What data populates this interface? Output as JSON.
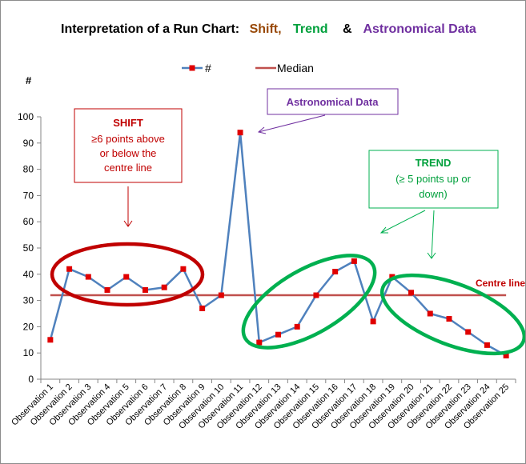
{
  "title": {
    "prefix": "Interpretation of a Run Chart:",
    "shift": "Shift,",
    "trend": "Trend",
    "amp": "&",
    "astro": "Astronomical Data",
    "colors": {
      "prefix": "#000000",
      "shift": "#984807",
      "trend": "#00a03c",
      "astro": "#7030a0"
    }
  },
  "legend": {
    "series": "#",
    "median": "Median"
  },
  "chart_data": {
    "type": "line",
    "ylabel": "#",
    "ylim": [
      0,
      100
    ],
    "yticks": [
      0,
      10,
      20,
      30,
      40,
      50,
      60,
      70,
      80,
      90,
      100
    ],
    "categories": [
      "Observation 1",
      "Observation 2",
      "Observation 3",
      "Observation 4",
      "Observation 5",
      "Observation 6",
      "Observation 7",
      "Observation 8",
      "Observation 9",
      "Observation 10",
      "Observation 11",
      "Observation 12",
      "Observation 13",
      "Observation 14",
      "Observation 15",
      "Observation 16",
      "Observation 17",
      "Observation 18",
      "Observation 19",
      "Observation 20",
      "Observation 21",
      "Observation 22",
      "Observation 23",
      "Observation 24",
      "Observation 25"
    ],
    "series": [
      {
        "name": "#",
        "values": [
          15,
          42,
          39,
          34,
          39,
          34,
          35,
          42,
          27,
          32,
          94,
          14,
          17,
          20,
          32,
          41,
          45,
          22,
          39,
          33,
          25,
          23,
          18,
          13,
          9
        ],
        "color": "#4f81bd",
        "marker_color": "#e00000"
      },
      {
        "name": "Median",
        "values": [
          32,
          32,
          32,
          32,
          32,
          32,
          32,
          32,
          32,
          32,
          32,
          32,
          32,
          32,
          32,
          32,
          32,
          32,
          32,
          32,
          32,
          32,
          32,
          32,
          32
        ],
        "color": "#c0504d"
      }
    ]
  },
  "annotations": {
    "shift": {
      "title": "SHIFT",
      "lines": [
        "≥6 points above",
        "or below the",
        "centre line"
      ]
    },
    "astro": {
      "label": "Astronomical Data"
    },
    "trend": {
      "title": "TREND",
      "lines": [
        "(≥ 5 points up or",
        "down)"
      ]
    },
    "centre_line": "Centre line"
  }
}
